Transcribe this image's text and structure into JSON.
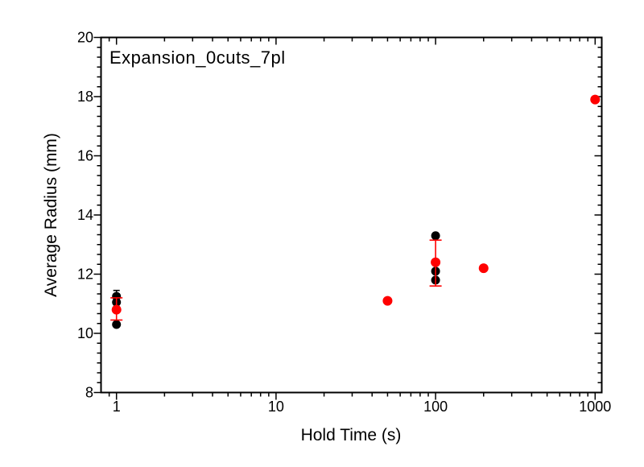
{
  "chart_data": {
    "type": "scatter",
    "title": "Expansion_0cuts_7pl",
    "xlabel": "Hold Time (s)",
    "ylabel": "Average Radius (mm)",
    "x_scale": "log",
    "xlim": [
      0.8,
      1100
    ],
    "ylim": [
      8,
      20
    ],
    "x_major_ticks": [
      1,
      10,
      100,
      1000
    ],
    "x_tick_labels": [
      "1",
      "10",
      "100",
      "1000"
    ],
    "x_minor_ticks": [
      0.9,
      2,
      3,
      4,
      5,
      6,
      7,
      8,
      9,
      20,
      30,
      40,
      50,
      60,
      70,
      80,
      90,
      200,
      300,
      400,
      500,
      600,
      700,
      800,
      900
    ],
    "y_major_ticks": [
      8,
      10,
      12,
      14,
      16,
      18,
      20
    ],
    "y_tick_labels": [
      "8",
      "10",
      "12",
      "14",
      "16",
      "18",
      "20"
    ],
    "y_minor_step": 0.3333333,
    "grid": false,
    "frame_color": "#000000",
    "background_color": "#ffffff",
    "series": [
      {
        "name": "black-dots",
        "color": "#000000",
        "marker": "circle",
        "marker_radius": 5.5,
        "errorbar_cap_width": 8,
        "points": [
          {
            "x": 1,
            "y": 11.25,
            "err_lo": 11.05,
            "err_hi": 11.45
          },
          {
            "x": 1,
            "y": 11.05
          },
          {
            "x": 1,
            "y": 10.3
          },
          {
            "x": 100,
            "y": 13.3
          },
          {
            "x": 100,
            "y": 12.1
          },
          {
            "x": 100,
            "y": 11.8
          }
        ]
      },
      {
        "name": "red-dots",
        "color": "#ff0000",
        "marker": "circle",
        "marker_radius": 6,
        "errorbar_cap_width": 15,
        "points": [
          {
            "x": 1,
            "y": 10.8,
            "err_lo": 10.45,
            "err_hi": 11.2
          },
          {
            "x": 50,
            "y": 11.1
          },
          {
            "x": 100,
            "y": 12.4,
            "err_lo": 11.6,
            "err_hi": 13.15
          },
          {
            "x": 200,
            "y": 12.2
          },
          {
            "x": 1000,
            "y": 17.9
          }
        ]
      }
    ]
  }
}
